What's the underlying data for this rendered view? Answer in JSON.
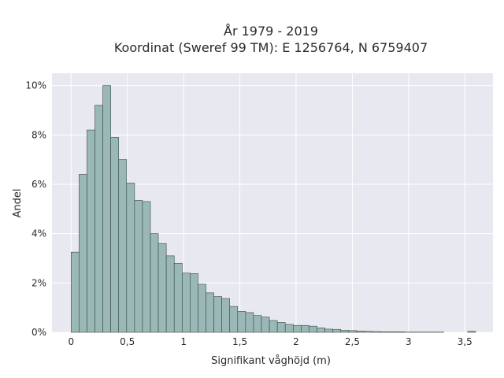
{
  "chart_data": {
    "type": "bar",
    "title_lines": [
      "År 1979 - 2019",
      "Koordinat (Sweref 99 TM): E 1256764, N 6759407"
    ],
    "xlabel": "Signifikant våghöjd (m)",
    "ylabel": "Andel",
    "xlim": [
      -0.17,
      3.75
    ],
    "ylim": [
      0,
      10.5
    ],
    "x_ticks": [
      {
        "value": 0,
        "label": "0"
      },
      {
        "value": 0.5,
        "label": "0,5"
      },
      {
        "value": 1,
        "label": "1"
      },
      {
        "value": 1.5,
        "label": "1,5"
      },
      {
        "value": 2,
        "label": "2"
      },
      {
        "value": 2.5,
        "label": "2,5"
      },
      {
        "value": 3,
        "label": "3"
      },
      {
        "value": 3.5,
        "label": "3,5"
      }
    ],
    "y_ticks": [
      {
        "value": 0,
        "label": "0%"
      },
      {
        "value": 2,
        "label": "2%"
      },
      {
        "value": 4,
        "label": "4%"
      },
      {
        "value": 6,
        "label": "6%"
      },
      {
        "value": 8,
        "label": "8%"
      },
      {
        "value": 10,
        "label": "10%"
      }
    ],
    "bin_width": 0.0705,
    "bin_starts": [
      0,
      0.0705,
      0.141,
      0.2115,
      0.282,
      0.3525,
      0.423,
      0.4935,
      0.564,
      0.6345,
      0.705,
      0.7755,
      0.846,
      0.9165,
      0.987,
      1.0575,
      1.128,
      1.1985,
      1.269,
      1.3395,
      1.41,
      1.4805,
      1.551,
      1.6215,
      1.692,
      1.7625,
      1.833,
      1.9035,
      1.974,
      2.0445,
      2.115,
      2.1855,
      2.256,
      2.3265,
      2.397,
      2.4675,
      2.538,
      2.6085,
      2.679,
      2.7495,
      2.82,
      2.8905,
      2.961,
      3.0315,
      3.102,
      3.1725,
      3.243,
      3.3135,
      3.384,
      3.4545,
      3.525
    ],
    "values": [
      3.25,
      6.4,
      8.2,
      9.2,
      10.0,
      7.9,
      7.0,
      6.05,
      5.35,
      5.3,
      4.0,
      3.6,
      3.1,
      2.8,
      2.4,
      2.38,
      1.95,
      1.6,
      1.45,
      1.37,
      1.05,
      0.85,
      0.8,
      0.68,
      0.62,
      0.48,
      0.4,
      0.32,
      0.28,
      0.28,
      0.25,
      0.18,
      0.13,
      0.12,
      0.08,
      0.07,
      0.05,
      0.04,
      0.03,
      0.02,
      0.02,
      0.02,
      0.01,
      0.01,
      0.01,
      0.01,
      0.01,
      0.0,
      0.0,
      0.0,
      0.04
    ],
    "grid": true,
    "colors": {
      "bar_fill": "#9ab8b6",
      "bar_stroke": "#3c4a48",
      "plot_bg": "#e8e8f0",
      "grid": "#ffffff"
    }
  }
}
